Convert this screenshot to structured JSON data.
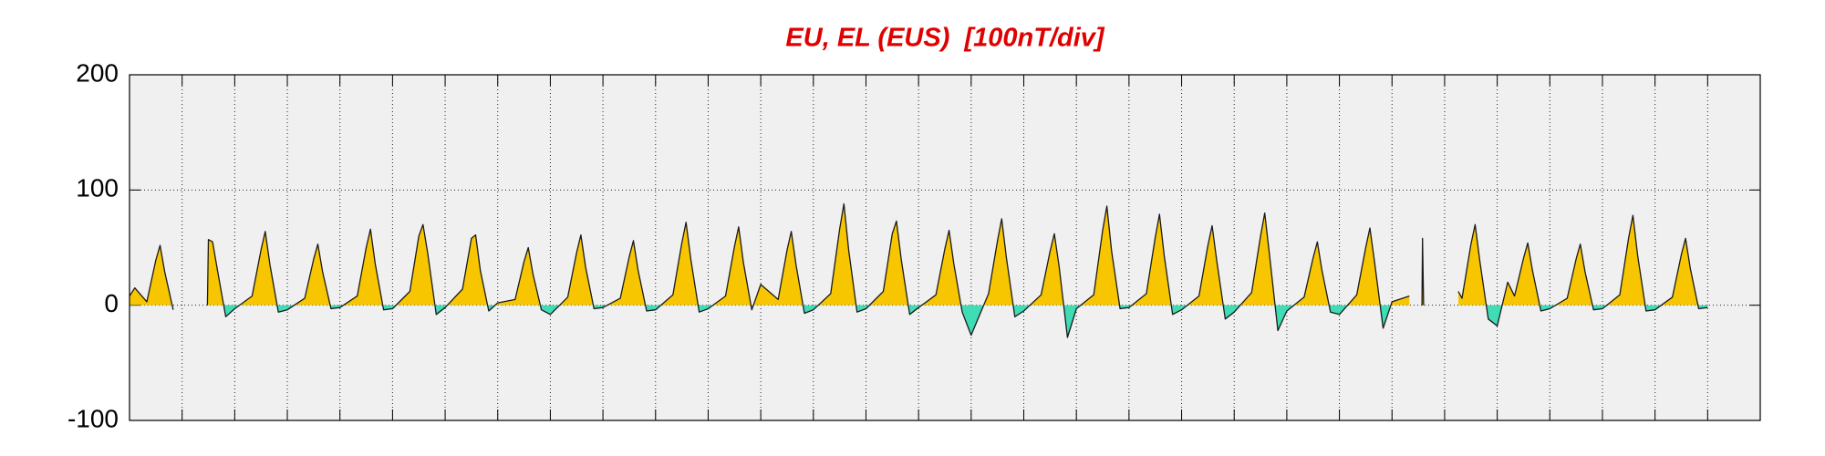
{
  "chart_data": {
    "type": "area-line",
    "title": "EU, EL (EUS)  [100nT/div]",
    "ylim": [
      -100,
      200
    ],
    "yticks": [
      -100,
      0,
      100,
      200
    ],
    "xlim": [
      0,
      31
    ],
    "xticks": [
      1,
      2,
      3,
      4,
      5,
      6,
      7,
      8,
      9,
      10,
      11,
      12,
      13,
      14,
      15,
      16,
      17,
      18,
      19,
      20,
      21,
      22,
      23,
      24,
      25,
      26,
      27,
      28,
      29,
      30
    ],
    "grid": true,
    "series": [
      {
        "color": "#1a1a1a",
        "fill_positive": "#f7c600",
        "fill_negative": "#3fdcb6",
        "x": [
          0,
          0.1,
          0.33,
          0.5,
          0.58,
          0.67,
          0.83,
          1.33,
          1.48,
          1.5,
          1.58,
          1.67,
          1.83,
          2,
          2.33,
          2.5,
          2.58,
          2.67,
          2.83,
          3,
          3.33,
          3.5,
          3.58,
          3.67,
          3.83,
          4,
          4.33,
          4.5,
          4.58,
          4.67,
          4.83,
          5,
          5.33,
          5.5,
          5.58,
          5.67,
          5.83,
          6,
          6.33,
          6.5,
          6.58,
          6.67,
          6.83,
          7,
          7.33,
          7.5,
          7.58,
          7.67,
          7.83,
          8,
          8.33,
          8.5,
          8.58,
          8.67,
          8.83,
          9,
          9.33,
          9.5,
          9.58,
          9.67,
          9.83,
          10,
          10.33,
          10.5,
          10.58,
          10.67,
          10.83,
          11,
          11.33,
          11.5,
          11.58,
          11.67,
          11.83,
          12,
          12.33,
          12.5,
          12.58,
          12.67,
          12.83,
          13,
          13.33,
          13.5,
          13.58,
          13.67,
          13.83,
          14,
          14.33,
          14.5,
          14.58,
          14.67,
          14.83,
          15,
          15.33,
          15.5,
          15.58,
          15.67,
          15.83,
          16,
          16.33,
          16.5,
          16.58,
          16.67,
          16.83,
          17,
          17.33,
          17.5,
          17.58,
          17.67,
          17.83,
          18,
          18.33,
          18.5,
          18.58,
          18.67,
          18.83,
          19,
          19.33,
          19.5,
          19.58,
          19.67,
          19.83,
          20,
          20.33,
          20.5,
          20.58,
          20.67,
          20.83,
          21,
          21.33,
          21.5,
          21.58,
          21.67,
          21.83,
          22,
          22.33,
          22.5,
          22.58,
          22.67,
          22.83,
          23,
          23.33,
          23.5,
          23.58,
          23.67,
          23.83,
          24,
          24.33,
          24.45,
          24.57,
          24.58,
          24.6,
          24.7,
          25.26,
          25.33,
          25.5,
          25.58,
          25.67,
          25.83,
          26,
          26.2,
          26.33,
          26.5,
          26.58,
          26.67,
          26.83,
          27,
          27.33,
          27.5,
          27.58,
          27.67,
          27.83,
          28,
          28.33,
          28.5,
          28.58,
          28.67,
          28.83,
          29,
          29.33,
          29.5,
          29.58,
          29.67,
          29.83,
          30
        ],
        "values": [
          8,
          15,
          3,
          39,
          52,
          29,
          -4,
          null,
          0,
          57,
          55,
          31,
          -10,
          -3,
          8,
          48,
          64,
          35,
          -6,
          -4,
          6,
          40,
          53,
          29,
          -3,
          -2,
          8,
          50,
          66,
          36,
          -4,
          -3,
          12,
          60,
          70,
          45,
          -8,
          -2,
          14,
          58,
          61,
          30,
          -5,
          2,
          5,
          38,
          50,
          27,
          -4,
          -8,
          7,
          46,
          61,
          33,
          -3,
          -2,
          6,
          42,
          56,
          30,
          -5,
          -4,
          9,
          54,
          72,
          40,
          -6,
          -3,
          8,
          51,
          68,
          37,
          -4,
          18,
          5,
          48,
          64,
          35,
          -7,
          -4,
          10,
          66,
          88,
          48,
          -6,
          -3,
          12,
          62,
          73,
          40,
          -8,
          -2,
          9,
          49,
          65,
          36,
          -6,
          -26,
          10,
          56,
          75,
          41,
          -10,
          -5,
          9,
          47,
          62,
          34,
          -28,
          -3,
          9,
          65,
          86,
          47,
          -3,
          -2,
          10,
          59,
          79,
          43,
          -8,
          -4,
          8,
          52,
          69,
          38,
          -12,
          -6,
          11,
          60,
          80,
          44,
          -22,
          -5,
          7,
          41,
          55,
          30,
          -6,
          -8,
          9,
          50,
          67,
          37,
          -20,
          3,
          8,
          null,
          0,
          58,
          0,
          null,
          12,
          6,
          53,
          70,
          38,
          -12,
          -18,
          20,
          8,
          41,
          54,
          30,
          -5,
          -3,
          6,
          40,
          53,
          29,
          -4,
          -3,
          9,
          59,
          78,
          43,
          -5,
          -4,
          7,
          44,
          58,
          32,
          -3,
          -2
        ]
      }
    ]
  }
}
